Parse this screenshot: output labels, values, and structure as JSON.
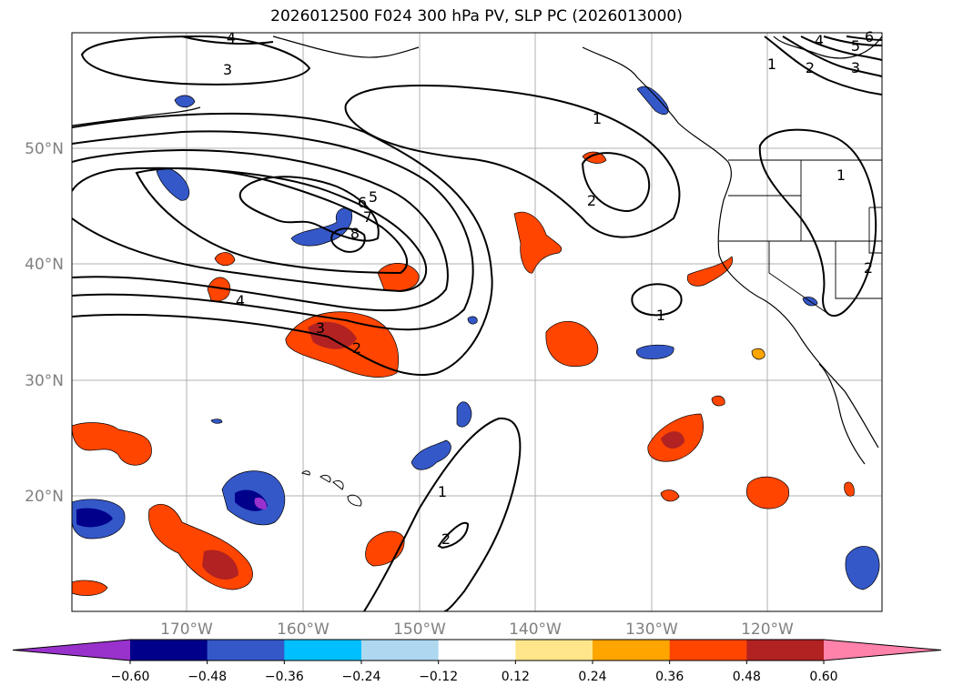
{
  "title": "2026012500 F024 300 hPa PV, SLP PC (2026013000)",
  "latitude_labels": [
    "50°N",
    "40°N",
    "30°N",
    "20°N"
  ],
  "longitude_labels": [
    "170°W",
    "160°W",
    "150°W",
    "140°W",
    "130°W",
    "120°W"
  ],
  "colorbar": {
    "ticks": [
      "−0.60",
      "−0.48",
      "−0.36",
      "−0.24",
      "−0.12",
      "0.12",
      "0.24",
      "0.36",
      "0.48",
      "0.60"
    ],
    "colors": [
      "#9932CC",
      "#00008B",
      "#3558C8",
      "#00BFFF",
      "#ADD8F0",
      "#FFFFFF",
      "#FFE68A",
      "#FFA500",
      "#FF4500",
      "#B22222",
      "#FF82AB"
    ]
  },
  "contour_labels": [
    "4",
    "3",
    "6",
    "5",
    "7",
    "8",
    "4",
    "3",
    "2",
    "1",
    "2",
    "1",
    "2",
    "3",
    "4",
    "5",
    "6",
    "1",
    "1",
    "2",
    "1",
    "2"
  ]
}
